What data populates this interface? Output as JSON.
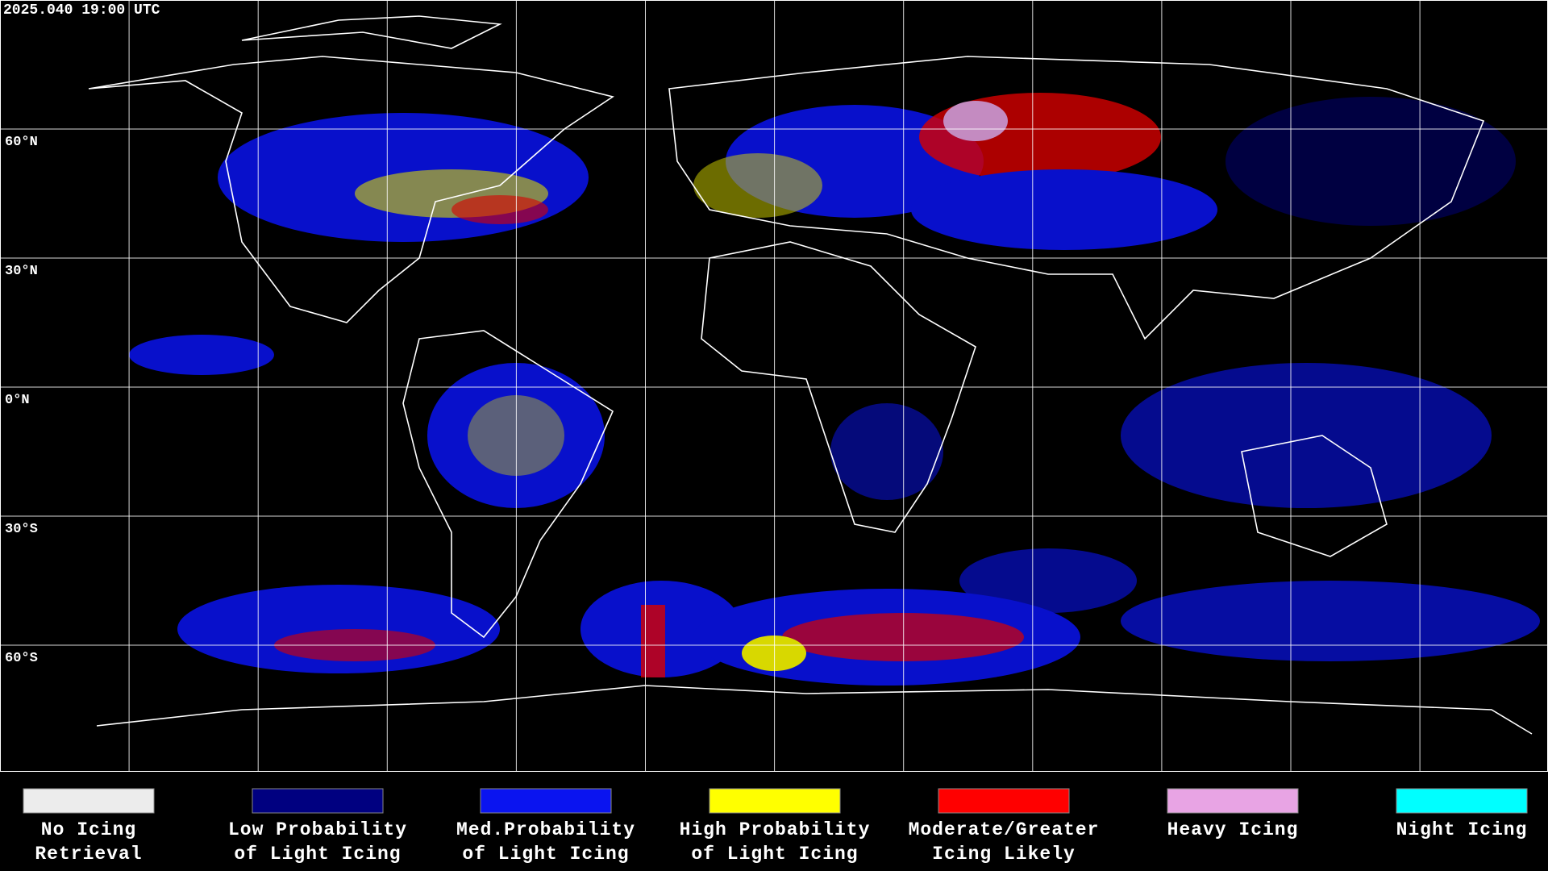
{
  "header": {
    "timestamp": "2025.040 19:00 UTC"
  },
  "map": {
    "latitude_labels": [
      "60°N",
      "30°N",
      "0°N",
      "30°S",
      "60°S"
    ]
  },
  "legend": {
    "items": [
      {
        "lines": [
          "No Icing",
          "Retrieval"
        ],
        "color": "#ececec"
      },
      {
        "lines": [
          "Low Probability",
          "of Light Icing"
        ],
        "color": "#000080"
      },
      {
        "lines": [
          "Med.Probability",
          "of Light Icing"
        ],
        "color": "#0a14f0"
      },
      {
        "lines": [
          "High Probability",
          "of Light Icing"
        ],
        "color": "#ffff00"
      },
      {
        "lines": [
          "Moderate/Greater",
          "Icing Likely"
        ],
        "color": "#ff0000"
      },
      {
        "lines": [
          "Heavy Icing"
        ],
        "color": "#e8a4e4"
      },
      {
        "lines": [
          "Night Icing"
        ],
        "color": "#00ffff"
      }
    ]
  }
}
